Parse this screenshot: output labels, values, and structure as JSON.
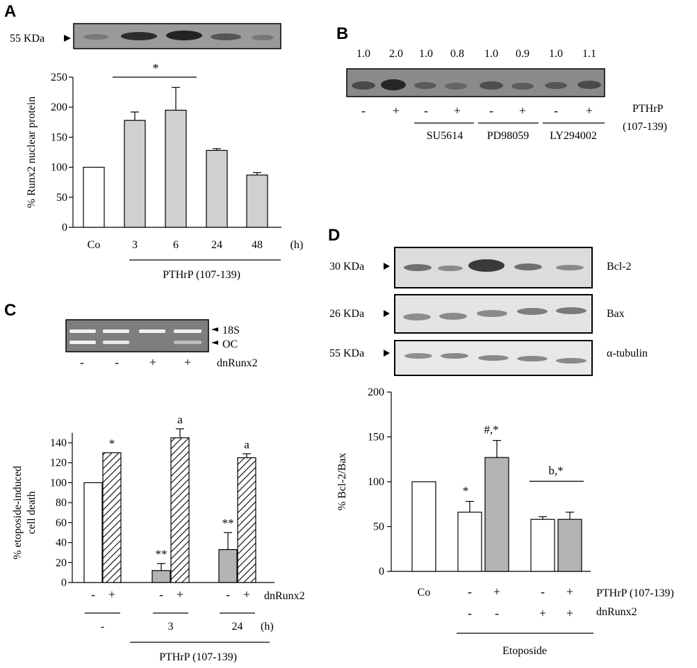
{
  "panel_labels": {
    "a": "A",
    "b": "B",
    "c": "C",
    "d": "D"
  },
  "panel_a": {
    "blot_label": "55 KDa",
    "significance": "*",
    "time_unit": "(h)",
    "treatment": "PTHrP (107-139)",
    "chart_data": {
      "type": "bar",
      "ylabel": "% Runx2 nuclear protein",
      "ylim": [
        0,
        250
      ],
      "yticks": [
        0,
        50,
        100,
        150,
        200,
        250
      ],
      "categories": [
        "Co",
        "3",
        "6",
        "24",
        "48"
      ],
      "values": [
        100,
        178,
        195,
        128,
        87
      ],
      "errors": [
        0,
        14,
        38,
        3,
        4
      ],
      "colors": [
        "#ffffff",
        "#d0d0d0",
        "#d0d0d0",
        "#d0d0d0",
        "#d0d0d0"
      ]
    }
  },
  "panel_b": {
    "ratios": [
      "1.0",
      "2.0",
      "1.0",
      "0.8",
      "1.0",
      "0.9",
      "1.0",
      "1.1"
    ],
    "signs": [
      "-",
      "+",
      "-",
      "+",
      "-",
      "+",
      "-",
      "+"
    ],
    "inhibitors": [
      "SU5614",
      "PD98059",
      "LY294002"
    ],
    "treatment_line1": "PTHrP",
    "treatment_line2": "(107-139)"
  },
  "panel_c": {
    "gel_label_top": "18S",
    "gel_label_bottom": "OC",
    "gel_signs": [
      "-",
      "-",
      "+",
      "+"
    ],
    "gel_dn_label": "dnRunx2",
    "dn_label": "dnRunx2",
    "group_labels": [
      "-",
      "3",
      "24"
    ],
    "time_unit": "(h)",
    "treatment": "PTHrP (107-139)",
    "chart_data": {
      "type": "bar",
      "ylabel_line1": "% etoposide-induced",
      "ylabel_line2": "cell death",
      "ylim": [
        0,
        150
      ],
      "yticks": [
        0,
        20,
        40,
        60,
        80,
        100,
        120,
        140
      ],
      "groups": [
        "-",
        "3",
        "24"
      ],
      "dnRunx2": [
        "-",
        "+"
      ],
      "values": [
        [
          100,
          130
        ],
        [
          12,
          145
        ],
        [
          33,
          125
        ]
      ],
      "errors": [
        [
          0,
          0
        ],
        [
          7,
          9
        ],
        [
          17,
          4
        ]
      ],
      "annotations": [
        [
          "",
          "*"
        ],
        [
          "**",
          "a"
        ],
        [
          "**",
          "a"
        ]
      ]
    }
  },
  "panel_d": {
    "blots": [
      {
        "kda": "30 KDa",
        "protein": "Bcl-2"
      },
      {
        "kda": "26 KDa",
        "protein": "Bax"
      },
      {
        "kda": "55 KDa",
        "protein": "α-tubulin"
      }
    ],
    "pthrp_signs": [
      "-",
      "+",
      "-",
      "+"
    ],
    "dn_signs": [
      "-",
      "-",
      "+",
      "+"
    ],
    "co_label": "Co",
    "treatment": "PTHrP (107-139)",
    "dn_label": "dnRunx2",
    "etoposide_label": "Etoposide",
    "bracket_annotation": "b,*",
    "chart_data": {
      "type": "bar",
      "ylabel": "% Bcl-2/Bax",
      "ylim": [
        0,
        200
      ],
      "yticks": [
        0,
        50,
        100,
        150,
        200
      ],
      "categories": [
        "Co",
        "-/-",
        "+/-",
        "-/+",
        "+/+"
      ],
      "values": [
        100,
        66,
        127,
        58,
        58
      ],
      "errors": [
        0,
        12,
        19,
        3,
        8
      ],
      "colors": [
        "#ffffff",
        "#ffffff",
        "#b4b4b4",
        "#ffffff",
        "#b4b4b4"
      ],
      "annotations": [
        "",
        "*",
        "#,*",
        "",
        ""
      ]
    }
  }
}
